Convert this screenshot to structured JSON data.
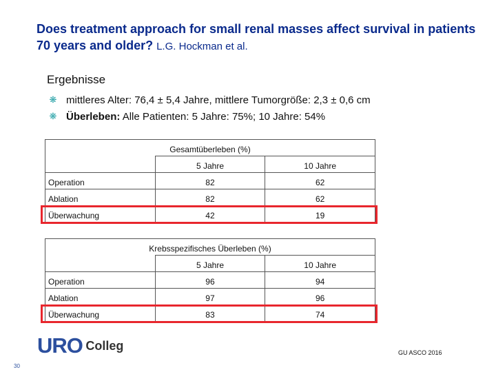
{
  "slide": {
    "title": "Does treatment approach for small renal masses affect survival in patients 70 years and older?",
    "authors": "L.G. Hockman et al.",
    "heading": "Ergebnisse",
    "bullet_color": "#2aa3a8",
    "bullets": [
      {
        "bold": "",
        "text": "mittleres Alter: 76,4 ± 5,4 Jahre, mittlere Tumorgröße: 2,3 ± 0,6 cm"
      },
      {
        "bold": "Überleben:",
        "text": " Alle Patienten: 5 Jahre: 75%; 10 Jahre: 54%"
      }
    ]
  },
  "table_overall": {
    "caption": "Gesamtüberleben (%)",
    "col_headers": [
      "5 Jahre",
      "10 Jahre"
    ],
    "rows": [
      {
        "label": "Operation",
        "v5": "82",
        "v10": "62"
      },
      {
        "label": "Ablation",
        "v5": "82",
        "v10": "62"
      },
      {
        "label": "Überwachung",
        "v5": "42",
        "v10": "19"
      }
    ]
  },
  "table_cancer": {
    "caption": "Krebsspezifisches Überleben (%)",
    "col_headers": [
      "5 Jahre",
      "10 Jahre"
    ],
    "rows": [
      {
        "label": "Operation",
        "v5": "96",
        "v10": "94"
      },
      {
        "label": "Ablation",
        "v5": "97",
        "v10": "96"
      },
      {
        "label": "Überwachung",
        "v5": "83",
        "v10": "74"
      }
    ]
  },
  "highlight_color": "#e8262d",
  "footer": {
    "logo_uro": "URO",
    "logo_college": "Colleg",
    "source": "GU ASCO 2016",
    "page_number": "30"
  }
}
